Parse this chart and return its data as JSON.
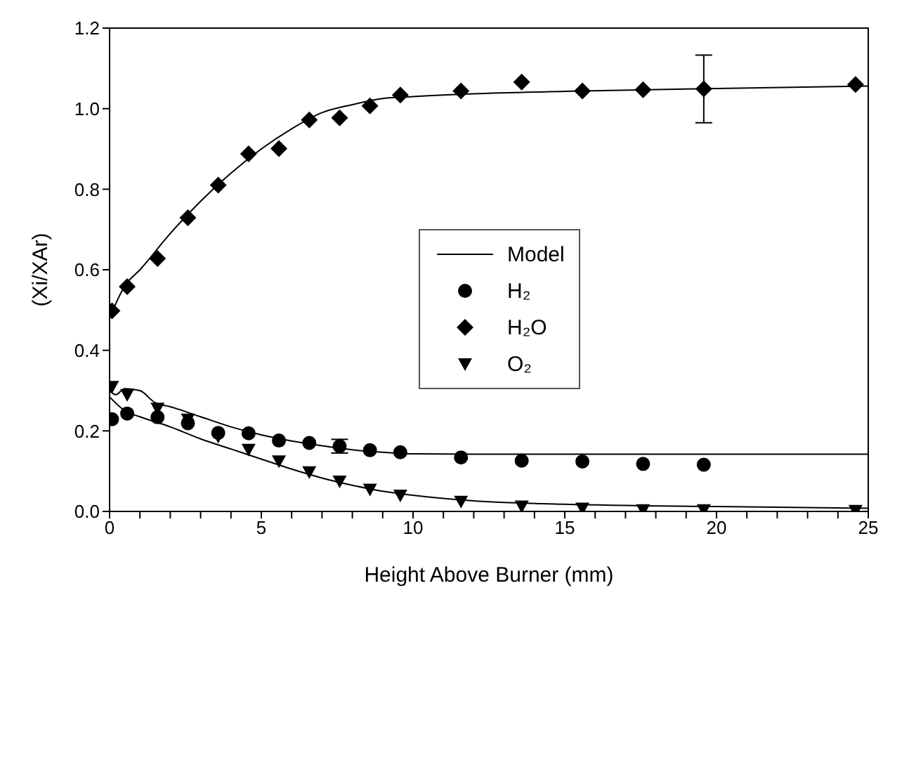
{
  "chart_data": {
    "type": "scatter",
    "xlabel": "Height Above Burner (mm)",
    "ylabel": "(Xi/XAr)",
    "xlim": [
      0,
      25
    ],
    "ylim": [
      0,
      1.2
    ],
    "xticks": [
      0,
      {
        "value": 1,
        "label": null
      },
      {
        "value": 2,
        "label": null
      },
      {
        "value": 3,
        "label": null
      },
      {
        "value": 4,
        "label": null
      },
      5,
      {
        "value": 6,
        "label": null
      },
      {
        "value": 7,
        "label": null
      },
      {
        "value": 8,
        "label": null
      },
      {
        "value": 9,
        "label": null
      },
      10,
      {
        "value": 11,
        "label": null
      },
      {
        "value": 12,
        "label": null
      },
      {
        "value": 13,
        "label": null
      },
      {
        "value": 14,
        "label": null
      },
      15,
      {
        "value": 16,
        "label": null
      },
      {
        "value": 17,
        "label": null
      },
      {
        "value": 18,
        "label": null
      },
      {
        "value": 19,
        "label": null
      },
      20,
      {
        "value": 21,
        "label": null
      },
      {
        "value": 22,
        "label": null
      },
      {
        "value": 23,
        "label": null
      },
      {
        "value": 24,
        "label": null
      },
      25
    ],
    "yticks": [
      {
        "value": 0,
        "label": "0.0"
      },
      {
        "value": 0.2,
        "label": "0.2"
      },
      {
        "value": 0.4,
        "label": "0.4"
      },
      {
        "value": 0.6,
        "label": "0.6"
      },
      {
        "value": 0.8,
        "label": "0.8"
      },
      {
        "value": 1,
        "label": "1.0"
      },
      {
        "value": 1.2,
        "label": "1.2"
      }
    ],
    "grid": false,
    "legend": "center",
    "series": [
      {
        "name": "Model",
        "type": "line",
        "color": "#000000",
        "marker": "none",
        "x": [
          0,
          0.5,
          1,
          2,
          3,
          4,
          5,
          6,
          7,
          8,
          9,
          10,
          12,
          15,
          20,
          25
        ],
        "values": [
          0.48,
          0.56,
          0.6,
          0.69,
          0.77,
          0.84,
          0.9,
          0.95,
          0.99,
          1.01,
          1.025,
          1.03,
          1.037,
          1.043,
          1.05,
          1.056
        ]
      },
      {
        "type": "line",
        "color": "#000000",
        "marker": "none",
        "x": [
          0,
          0.2,
          0.5,
          1,
          1.5,
          2,
          3,
          4,
          5,
          6,
          7,
          8,
          9,
          10,
          12,
          25
        ],
        "values": [
          0.3,
          0.29,
          0.305,
          0.3,
          0.27,
          0.26,
          0.235,
          0.21,
          0.19,
          0.175,
          0.163,
          0.153,
          0.147,
          0.143,
          0.142,
          0.142
        ]
      },
      {
        "type": "line",
        "color": "#000000",
        "marker": "none",
        "x": [
          0,
          0.5,
          1,
          2,
          3,
          4,
          5,
          6,
          7,
          8,
          9,
          10,
          12,
          15,
          20,
          25
        ],
        "values": [
          0.284,
          0.25,
          0.235,
          0.21,
          0.18,
          0.155,
          0.13,
          0.105,
          0.083,
          0.065,
          0.05,
          0.04,
          0.026,
          0.018,
          0.012,
          0.008
        ]
      },
      {
        "name": "H₂",
        "color": "#000000",
        "marker": "circle",
        "x": [
          0.08,
          0.58,
          1.58,
          2.58,
          3.58,
          4.58,
          5.58,
          6.58,
          7.58,
          8.58,
          9.58,
          11.58,
          13.58,
          15.58,
          17.58,
          19.58
        ],
        "values": [
          0.229,
          0.243,
          0.234,
          0.219,
          0.195,
          0.194,
          0.176,
          0.17,
          0.162,
          0.152,
          0.147,
          0.134,
          0.126,
          0.124,
          0.118,
          0.116
        ],
        "errors": [
          null,
          null,
          null,
          null,
          null,
          null,
          null,
          null,
          0.017,
          null,
          null,
          null,
          null,
          null,
          null,
          null
        ]
      },
      {
        "name": "H₂O",
        "color": "#000000",
        "marker": "diamond",
        "x": [
          0.08,
          0.58,
          1.58,
          2.58,
          3.58,
          4.58,
          5.58,
          6.58,
          7.58,
          8.58,
          9.58,
          11.58,
          13.58,
          15.58,
          17.58,
          19.58,
          24.58
        ],
        "values": [
          0.498,
          0.558,
          0.628,
          0.729,
          0.81,
          0.888,
          0.901,
          0.972,
          0.977,
          1.007,
          1.034,
          1.044,
          1.066,
          1.044,
          1.047,
          1.049,
          1.06
        ],
        "errors": [
          null,
          null,
          null,
          null,
          null,
          null,
          null,
          null,
          null,
          null,
          null,
          null,
          null,
          null,
          null,
          0.084,
          null
        ]
      },
      {
        "name": "O₂",
        "color": "#000000",
        "marker": "triangle",
        "x": [
          0.08,
          0.58,
          1.58,
          2.58,
          3.58,
          4.58,
          5.58,
          6.58,
          7.58,
          8.58,
          9.58,
          11.58,
          13.58,
          15.58,
          17.58,
          19.58,
          24.58
        ],
        "values": [
          0.31,
          0.29,
          0.256,
          0.229,
          0.186,
          0.154,
          0.125,
          0.098,
          0.075,
          0.055,
          0.04,
          0.025,
          0.013,
          0.008,
          0.004,
          0.004,
          0.002
        ]
      }
    ]
  }
}
